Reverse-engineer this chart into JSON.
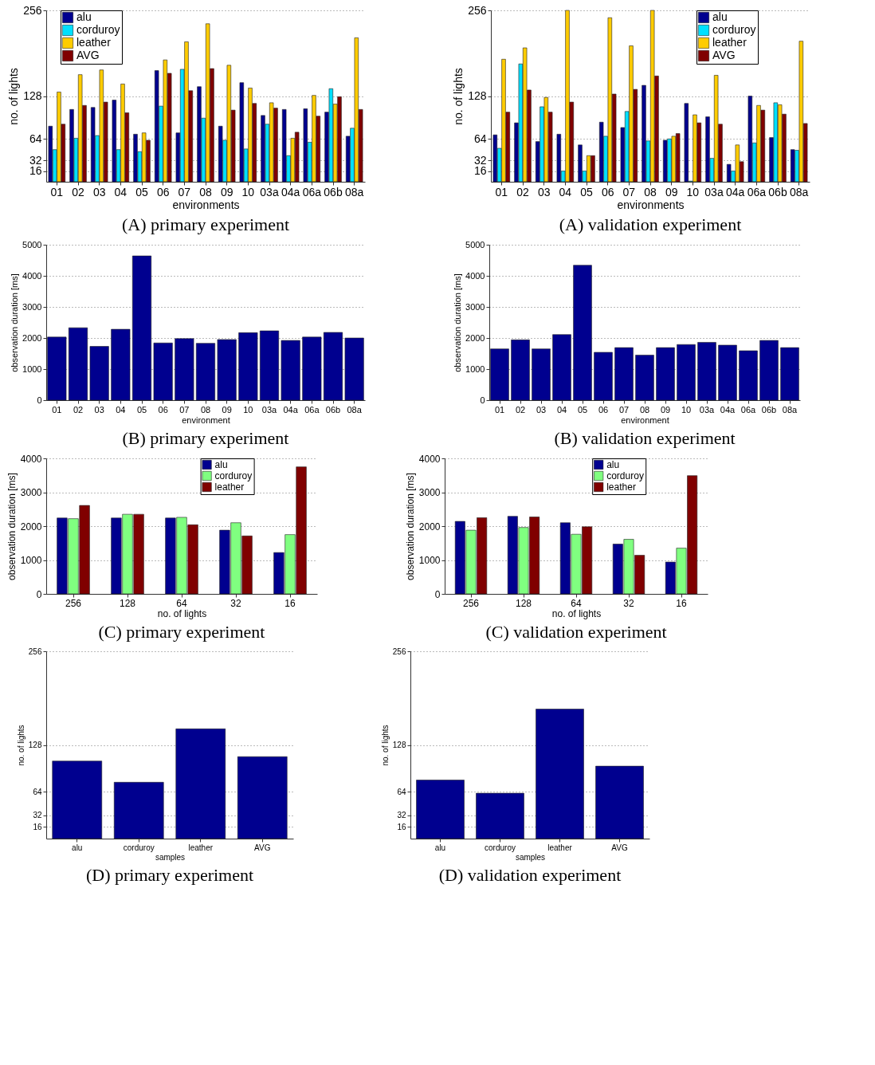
{
  "chart_data": [
    {
      "type": "bar",
      "title": "(A) primary experiment",
      "xlabel": "environments",
      "ylabel": "no. of lights",
      "categories": [
        "01",
        "02",
        "03",
        "04",
        "05",
        "06",
        "07",
        "08",
        "09",
        "10",
        "03a",
        "04a",
        "06a",
        "06b",
        "08a"
      ],
      "ylim": [
        0,
        256
      ],
      "yticks": [
        16,
        32,
        64,
        128,
        256
      ],
      "grid": "y",
      "legend": "top left",
      "series": [
        {
          "name": "alu",
          "color": "#00008f",
          "values": [
            83,
            108,
            111,
            122,
            71,
            166,
            73,
            142,
            83,
            148,
            99,
            108,
            109,
            104,
            68
          ]
        },
        {
          "name": "corduroy",
          "color": "#00e0ff",
          "values": [
            48,
            65,
            69,
            48,
            45,
            113,
            168,
            95,
            62,
            49,
            86,
            39,
            59,
            139,
            80
          ]
        },
        {
          "name": "leather",
          "color": "#ffcc00",
          "values": [
            134,
            160,
            167,
            146,
            73,
            182,
            209,
            236,
            174,
            140,
            118,
            65,
            129,
            116,
            215
          ]
        },
        {
          "name": "AVG",
          "color": "#800000",
          "values": [
            86,
            114,
            119,
            103,
            62,
            162,
            136,
            169,
            107,
            117,
            110,
            74,
            98,
            127,
            108
          ]
        }
      ]
    },
    {
      "type": "bar",
      "title": "(A) validation experiment",
      "xlabel": "environments",
      "ylabel": "no. of lights",
      "categories": [
        "01",
        "02",
        "03",
        "04",
        "05",
        "06",
        "07",
        "08",
        "09",
        "10",
        "03a",
        "04a",
        "06a",
        "06b",
        "08a"
      ],
      "ylim": [
        0,
        256
      ],
      "yticks": [
        16,
        32,
        64,
        128,
        256
      ],
      "grid": "y",
      "legend": "top right",
      "series": [
        {
          "name": "alu",
          "color": "#00008f",
          "values": [
            70,
            88,
            60,
            71,
            55,
            89,
            81,
            144,
            62,
            117,
            97,
            26,
            128,
            66,
            48
          ]
        },
        {
          "name": "corduroy",
          "color": "#00e0ff",
          "values": [
            50,
            176,
            112,
            16,
            16,
            68,
            105,
            61,
            64,
            1,
            35,
            16,
            58,
            118,
            47
          ]
        },
        {
          "name": "leather",
          "color": "#ffcc00",
          "values": [
            183,
            200,
            126,
            256,
            39,
            245,
            203,
            256,
            68,
            100,
            159,
            55,
            114,
            115,
            210
          ]
        },
        {
          "name": "AVG",
          "color": "#800000",
          "values": [
            104,
            137,
            104,
            119,
            39,
            131,
            138,
            158,
            72,
            88,
            86,
            30,
            107,
            101,
            87
          ]
        }
      ]
    },
    {
      "type": "bar",
      "title": "(B) primary experiment",
      "xlabel": "environment",
      "ylabel": "observation duration [ms]",
      "categories": [
        "01",
        "02",
        "03",
        "04",
        "05",
        "06",
        "07",
        "08",
        "09",
        "10",
        "03a",
        "04a",
        "06a",
        "06b",
        "08a"
      ],
      "ylim": [
        0,
        5000
      ],
      "yticks": [
        0,
        1000,
        2000,
        3000,
        4000,
        5000
      ],
      "grid": "y",
      "color": "#00008f",
      "values": [
        2030,
        2330,
        1730,
        2280,
        4640,
        1840,
        1980,
        1830,
        1950,
        2170,
        2230,
        1920,
        2030,
        2180,
        2000
      ]
    },
    {
      "type": "bar",
      "title": "(B) validation experiment",
      "xlabel": "environment",
      "ylabel": "observation duration [ms]",
      "categories": [
        "01",
        "02",
        "03",
        "04",
        "05",
        "06",
        "07",
        "08",
        "09",
        "10",
        "03a",
        "04a",
        "06a",
        "06b",
        "08a"
      ],
      "ylim": [
        0,
        5000
      ],
      "yticks": [
        0,
        1000,
        2000,
        3000,
        4000,
        5000
      ],
      "grid": "y",
      "color": "#00008f",
      "values": [
        1650,
        1940,
        1650,
        2110,
        4340,
        1540,
        1690,
        1450,
        1690,
        1790,
        1860,
        1770,
        1590,
        1920,
        1690
      ]
    },
    {
      "type": "bar",
      "title": "(C) primary experiment",
      "xlabel": "no. of lights",
      "ylabel": "observation duration [ms]",
      "categories": [
        "256",
        "128",
        "64",
        "32",
        "16"
      ],
      "ylim": [
        0,
        4000
      ],
      "yticks": [
        0,
        1000,
        2000,
        3000,
        4000
      ],
      "grid": "y",
      "legend": "top right",
      "series": [
        {
          "name": "alu",
          "color": "#00008f",
          "values": [
            2240,
            2240,
            2240,
            1880,
            1220
          ]
        },
        {
          "name": "corduroy",
          "color": "#80ff80",
          "values": [
            2220,
            2350,
            2260,
            2100,
            1750
          ]
        },
        {
          "name": "leather",
          "color": "#800000",
          "values": [
            2610,
            2350,
            2040,
            1710,
            3750
          ]
        }
      ]
    },
    {
      "type": "bar",
      "title": "(C) validation experiment",
      "xlabel": "no. of lights",
      "ylabel": "observation duration [ms]",
      "categories": [
        "256",
        "128",
        "64",
        "32",
        "16"
      ],
      "ylim": [
        0,
        4000
      ],
      "yticks": [
        0,
        1000,
        2000,
        3000,
        4000
      ],
      "grid": "y",
      "legend": "top right",
      "series": [
        {
          "name": "alu",
          "color": "#00008f",
          "values": [
            2140,
            2290,
            2100,
            1470,
            940
          ]
        },
        {
          "name": "corduroy",
          "color": "#80ff80",
          "values": [
            1880,
            1960,
            1760,
            1610,
            1350
          ]
        },
        {
          "name": "leather",
          "color": "#800000",
          "values": [
            2250,
            2270,
            1980,
            1140,
            3490
          ]
        }
      ]
    },
    {
      "type": "bar",
      "title": "(D) primary experiment",
      "xlabel": "samples",
      "ylabel": "no. of lights",
      "categories": [
        "alu",
        "corduroy",
        "leather",
        "AVG"
      ],
      "ylim": [
        0,
        256
      ],
      "yticks": [
        16,
        32,
        64,
        128,
        256
      ],
      "grid": "y",
      "color": "#00008f",
      "values": [
        106,
        77,
        150,
        112
      ]
    },
    {
      "type": "bar",
      "title": "(D) validation experiment",
      "xlabel": "samples",
      "ylabel": "no. of lights",
      "categories": [
        "alu",
        "corduroy",
        "leather",
        "AVG"
      ],
      "ylim": [
        0,
        256
      ],
      "yticks": [
        16,
        32,
        64,
        128,
        256
      ],
      "grid": "y",
      "color": "#00008f",
      "values": [
        80,
        62,
        177,
        99
      ]
    }
  ]
}
